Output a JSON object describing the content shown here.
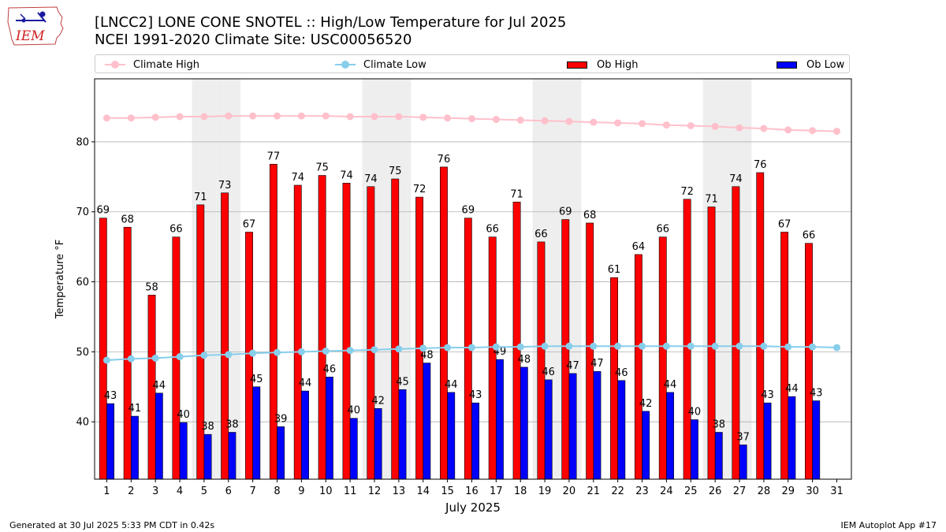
{
  "header": {
    "title_line1": "[LNCC2] LONE CONE SNOTEL :: High/Low Temperature for Jul 2025",
    "title_line2": "NCEI 1991-2020 Climate Site: USC00056520",
    "logo_text": "IEM"
  },
  "legend": {
    "climate_high": "Climate High",
    "climate_low": "Climate Low",
    "ob_high": "Ob High",
    "ob_low": "Ob Low"
  },
  "colors": {
    "climate_high": "#ffc0cb",
    "climate_low": "#87ceeb",
    "ob_high": "#ff0000",
    "ob_low": "#0000ff",
    "weekend_band": "#eeeeee",
    "grid": "#b0b0b0"
  },
  "footer": {
    "generated": "Generated at 30 Jul 2025 5:33 PM CDT in 0.42s",
    "app": "IEM Autoplot App #17"
  },
  "chart_data": {
    "type": "bar",
    "xlabel": "July 2025",
    "ylabel": "Temperature °F",
    "ylim": [
      31.8,
      89.0
    ],
    "yticks": [
      40,
      50,
      60,
      70,
      80
    ],
    "grid": "horizontal",
    "legend_position": "top",
    "categories": [
      "1",
      "2",
      "3",
      "4",
      "5",
      "6",
      "7",
      "8",
      "9",
      "10",
      "11",
      "12",
      "13",
      "14",
      "15",
      "16",
      "17",
      "18",
      "19",
      "20",
      "21",
      "22",
      "23",
      "24",
      "25",
      "26",
      "27",
      "28",
      "29",
      "30",
      "31"
    ],
    "shaded_days": [
      5,
      6,
      12,
      13,
      19,
      20,
      26,
      27
    ],
    "ob_high": [
      69,
      68,
      58,
      66,
      71,
      73,
      67,
      77,
      74,
      75,
      74,
      74,
      75,
      72,
      76,
      69,
      66,
      71,
      66,
      69,
      68,
      61,
      64,
      66,
      72,
      71,
      74,
      76,
      67,
      66,
      null
    ],
    "ob_high_exact": [
      69.1,
      67.8,
      58.1,
      66.4,
      71.0,
      72.7,
      67.1,
      76.8,
      73.8,
      75.2,
      74.1,
      73.6,
      74.7,
      72.1,
      76.4,
      69.1,
      66.4,
      71.4,
      65.7,
      68.9,
      68.4,
      60.6,
      63.9,
      66.4,
      71.8,
      70.7,
      73.6,
      75.6,
      67.1,
      65.5,
      null
    ],
    "ob_low": [
      43,
      41,
      44,
      40,
      38,
      38,
      45,
      39,
      44,
      46,
      40,
      42,
      45,
      48,
      44,
      43,
      49,
      48,
      46,
      47,
      47,
      46,
      42,
      44,
      40,
      38,
      37,
      43,
      44,
      43,
      null
    ],
    "ob_low_exact": [
      42.6,
      40.8,
      44.1,
      39.9,
      38.2,
      38.5,
      45.0,
      39.3,
      44.4,
      46.4,
      40.5,
      41.9,
      44.6,
      48.4,
      44.2,
      42.7,
      48.9,
      47.8,
      46.0,
      46.9,
      47.2,
      45.9,
      41.5,
      44.2,
      40.3,
      38.5,
      36.7,
      42.7,
      43.6,
      43.0,
      null
    ],
    "climate_high": [
      83.4,
      83.4,
      83.5,
      83.6,
      83.6,
      83.7,
      83.7,
      83.7,
      83.7,
      83.7,
      83.6,
      83.6,
      83.6,
      83.5,
      83.4,
      83.3,
      83.2,
      83.1,
      83.0,
      82.9,
      82.8,
      82.7,
      82.6,
      82.4,
      82.3,
      82.2,
      82.0,
      81.9,
      81.7,
      81.6,
      81.5
    ],
    "climate_low": [
      48.8,
      49.0,
      49.1,
      49.3,
      49.5,
      49.6,
      49.8,
      49.9,
      50.0,
      50.1,
      50.2,
      50.3,
      50.4,
      50.5,
      50.6,
      50.6,
      50.7,
      50.7,
      50.8,
      50.8,
      50.8,
      50.8,
      50.8,
      50.8,
      50.8,
      50.8,
      50.8,
      50.8,
      50.7,
      50.7,
      50.6
    ]
  }
}
